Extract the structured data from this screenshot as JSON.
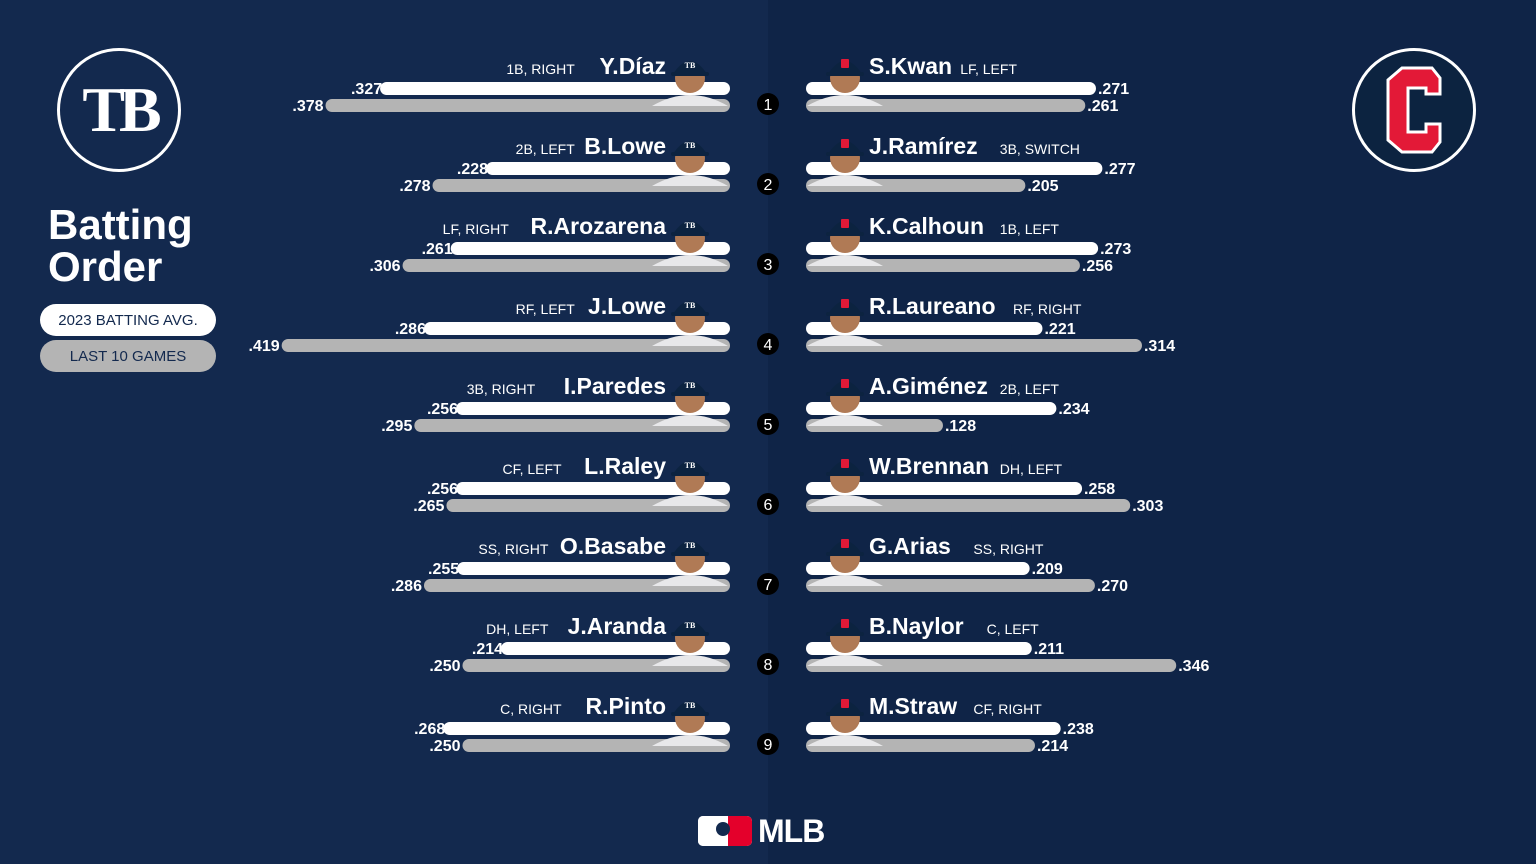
{
  "title_line1": "Batting",
  "title_line2": "Order",
  "legend": {
    "season": "2023 BATTING AVG.",
    "last10": "LAST 10 GAMES"
  },
  "footer": {
    "brand": "MLB"
  },
  "teams": {
    "left_logo_text": "TB",
    "right_logo_text": "C"
  },
  "colors": {
    "background": "#13294e",
    "season_bar": "#ffffff",
    "last10_bar": "#b4b4b4",
    "cle_red": "#e31937",
    "cap_navy": "#0c2340"
  },
  "chart_data": {
    "type": "bar",
    "series": [
      {
        "name": "2023 BATTING AVG."
      },
      {
        "name": "LAST 10 GAMES"
      }
    ],
    "away": [
      {
        "order": "1",
        "name": "Y.Díaz",
        "pos": "1B, RIGHT",
        "avg": 0.327,
        "avg_label": ".327",
        "last10": 0.378,
        "last10_label": ".378"
      },
      {
        "order": "2",
        "name": "B.Lowe",
        "pos": "2B, LEFT",
        "avg": 0.228,
        "avg_label": ".228",
        "last10": 0.278,
        "last10_label": ".278"
      },
      {
        "order": "3",
        "name": "R.Arozarena",
        "pos": "LF, RIGHT",
        "avg": 0.261,
        "avg_label": ".261",
        "last10": 0.306,
        "last10_label": ".306"
      },
      {
        "order": "4",
        "name": "J.Lowe",
        "pos": "RF, LEFT",
        "avg": 0.286,
        "avg_label": ".286",
        "last10": 0.419,
        "last10_label": ".419"
      },
      {
        "order": "5",
        "name": "I.Paredes",
        "pos": "3B, RIGHT",
        "avg": 0.256,
        "avg_label": ".256",
        "last10": 0.295,
        "last10_label": ".295"
      },
      {
        "order": "6",
        "name": "L.Raley",
        "pos": "CF, LEFT",
        "avg": 0.256,
        "avg_label": ".256",
        "last10": 0.265,
        "last10_label": ".265"
      },
      {
        "order": "7",
        "name": "O.Basabe",
        "pos": "SS, RIGHT",
        "avg": 0.255,
        "avg_label": ".255",
        "last10": 0.286,
        "last10_label": ".286"
      },
      {
        "order": "8",
        "name": "J.Aranda",
        "pos": "DH, LEFT",
        "avg": 0.214,
        "avg_label": ".214",
        "last10": 0.25,
        "last10_label": ".250"
      },
      {
        "order": "9",
        "name": "R.Pinto",
        "pos": "C, RIGHT",
        "avg": 0.268,
        "avg_label": ".268",
        "last10": 0.25,
        "last10_label": ".250"
      }
    ],
    "home": [
      {
        "name": "S.Kwan",
        "pos": "LF, LEFT",
        "avg": 0.271,
        "avg_label": ".271",
        "last10": 0.261,
        "last10_label": ".261"
      },
      {
        "name": "J.Ramírez",
        "pos": "3B, SWITCH",
        "avg": 0.277,
        "avg_label": ".277",
        "last10": 0.205,
        "last10_label": ".205"
      },
      {
        "name": "K.Calhoun",
        "pos": "1B, LEFT",
        "avg": 0.273,
        "avg_label": ".273",
        "last10": 0.256,
        "last10_label": ".256"
      },
      {
        "name": "R.Laureano",
        "pos": "RF, RIGHT",
        "avg": 0.221,
        "avg_label": ".221",
        "last10": 0.314,
        "last10_label": ".314"
      },
      {
        "name": "A.Giménez",
        "pos": "2B, LEFT",
        "avg": 0.234,
        "avg_label": ".234",
        "last10": 0.128,
        "last10_label": ".128"
      },
      {
        "name": "W.Brennan",
        "pos": "DH, LEFT",
        "avg": 0.258,
        "avg_label": ".258",
        "last10": 0.303,
        "last10_label": ".303"
      },
      {
        "name": "G.Arias",
        "pos": "SS, RIGHT",
        "avg": 0.209,
        "avg_label": ".209",
        "last10": 0.27,
        "last10_label": ".270"
      },
      {
        "name": "B.Naylor",
        "pos": "C, LEFT",
        "avg": 0.211,
        "avg_label": ".211",
        "last10": 0.346,
        "last10_label": ".346"
      },
      {
        "name": "M.Straw",
        "pos": "CF, RIGHT",
        "avg": 0.238,
        "avg_label": ".238",
        "last10": 0.214,
        "last10_label": ".214"
      }
    ]
  }
}
